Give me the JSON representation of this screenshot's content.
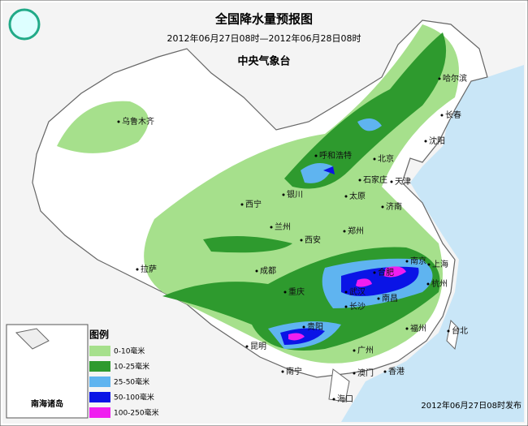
{
  "header": {
    "title": "全国降水量预报图",
    "subtitle": "2012年06月27日08时—2012年06月28日08时",
    "agency": "中央气象台"
  },
  "cities": [
    "乌鲁木齐",
    "哈尔滨",
    "长春",
    "沈阳",
    "呼和浩特",
    "北京",
    "天津",
    "石家庄",
    "太原",
    "济南",
    "银川",
    "西宁",
    "兰州",
    "郑州",
    "西安",
    "成都",
    "拉萨",
    "南京",
    "上海",
    "合肥",
    "杭州",
    "武汉",
    "重庆",
    "南昌",
    "长沙",
    "贵阳",
    "福州",
    "台北",
    "昆明",
    "广州",
    "南宁",
    "香港",
    "澳门",
    "海口"
  ],
  "legend": {
    "title": "图例",
    "items": [
      {
        "label": "0-10毫米",
        "color": "#a6e08c"
      },
      {
        "label": "10-25毫米",
        "color": "#2e9a2e"
      },
      {
        "label": "25-50毫米",
        "color": "#5fb4f0"
      },
      {
        "label": "50-100毫米",
        "color": "#0a14e6"
      },
      {
        "label": "100-250毫米",
        "color": "#f01ef0"
      }
    ]
  },
  "inset": {
    "label": "南海诸岛"
  },
  "footer": {
    "release": "2012年06月27日08时发布"
  }
}
